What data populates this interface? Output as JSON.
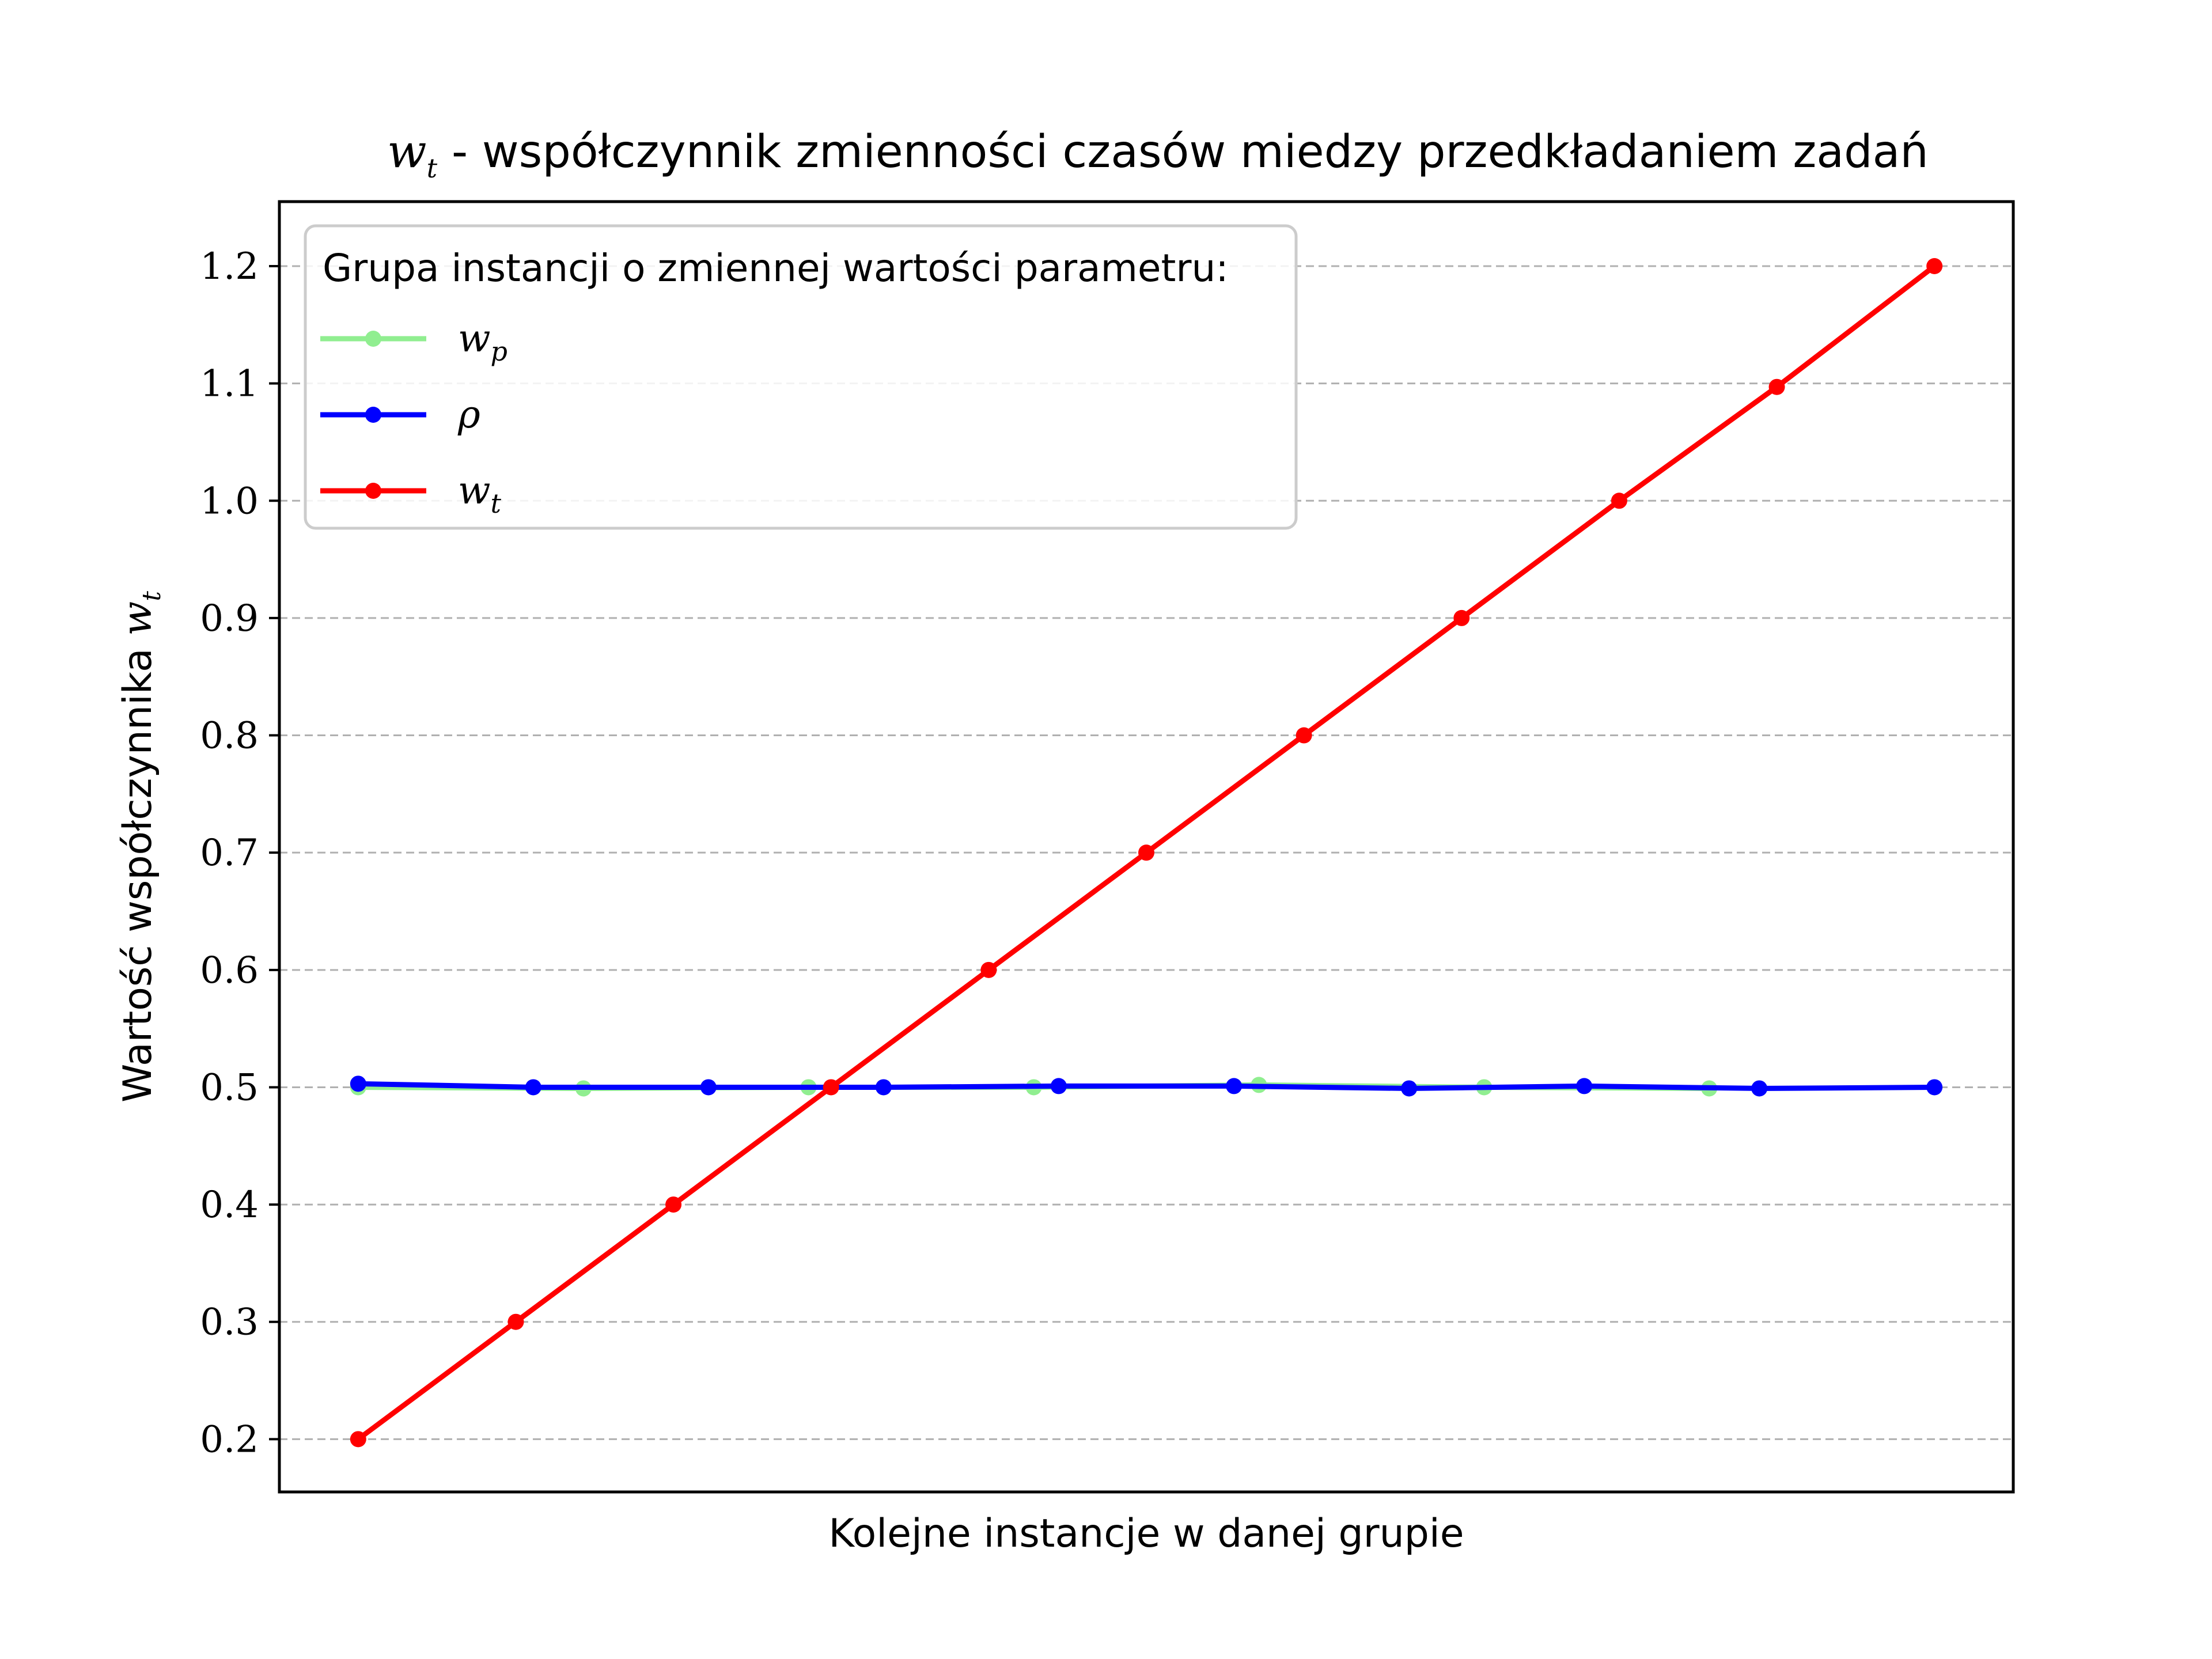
{
  "chart_data": {
    "type": "line",
    "title": {
      "math": "w",
      "math_sub": "t",
      "text": " - współczynnik zmienności czasów miedzy przedkładaniem zadań"
    },
    "xlabel": "Kolejne instancje w danej grupie",
    "ylabel": {
      "text": "Wartość współczynnika ",
      "math": "w",
      "math_sub": "t"
    },
    "ylim": [
      0.155,
      1.255
    ],
    "xlim": [
      -0.05,
      1.05
    ],
    "yticks": [
      0.2,
      0.3,
      0.4,
      0.5,
      0.6,
      0.7,
      0.8,
      0.9,
      1.0,
      1.1,
      1.2
    ],
    "ytick_labels": [
      "0.2",
      "0.3",
      "0.4",
      "0.5",
      "0.6",
      "0.7",
      "0.8",
      "0.9",
      "1.0",
      "1.1",
      "1.2"
    ],
    "grid": "horizontal dashed",
    "legend": {
      "placement": "top-left",
      "title": "Grupa instancji o zmiennej wartości parametru:"
    },
    "series": [
      {
        "name": "w",
        "name_sub": "p",
        "color": "#90ee90",
        "x": [
          0,
          0.1429,
          0.2857,
          0.4286,
          0.5714,
          0.7143,
          0.8571
        ],
        "y": [
          0.5,
          0.499,
          0.5,
          0.5,
          0.502,
          0.5,
          0.499
        ]
      },
      {
        "name": "ρ",
        "name_sub": "",
        "color": "#0000ff",
        "x": [
          0,
          0.1111,
          0.2222,
          0.3333,
          0.4444,
          0.5556,
          0.6667,
          0.7778,
          0.8889,
          1.0
        ],
        "y": [
          0.503,
          0.5,
          0.5,
          0.5,
          0.501,
          0.501,
          0.499,
          0.501,
          0.499,
          0.5
        ]
      },
      {
        "name": "w",
        "name_sub": "t",
        "color": "#ff0000",
        "x": [
          0,
          0.1,
          0.2,
          0.3,
          0.4,
          0.5,
          0.6,
          0.7,
          0.8,
          0.9,
          1.0
        ],
        "y": [
          0.2,
          0.3,
          0.4,
          0.5,
          0.6,
          0.7,
          0.8,
          0.9,
          1.0,
          1.097,
          1.2
        ]
      }
    ]
  }
}
